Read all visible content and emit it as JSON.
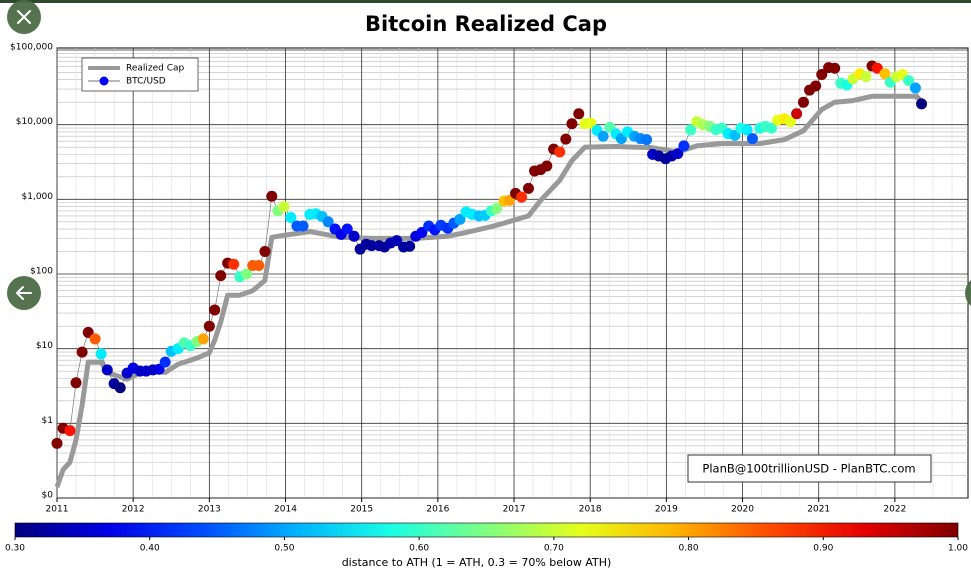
{
  "chart_data": {
    "type": "scatter-line",
    "title": "Bitcoin Realized Cap",
    "log_y": true,
    "grid": true,
    "legend": "upper-left",
    "annotation": "PlanB@100trillionUSD  -  PlanBTC.com",
    "xlim": [
      2011,
      2022.96
    ],
    "xticks": [
      2011,
      2012,
      2013,
      2014,
      2015,
      2016,
      2017,
      2018,
      2019,
      2020,
      2021,
      2022
    ],
    "ylim": [
      0.1,
      100000
    ],
    "yticks": [
      {
        "value": 0.1,
        "label": "$0"
      },
      {
        "value": 1,
        "label": "$1"
      },
      {
        "value": 10,
        "label": "$10"
      },
      {
        "value": 100,
        "label": "$100"
      },
      {
        "value": 1000,
        "label": "$1,000"
      },
      {
        "value": 10000,
        "label": "$10,000"
      },
      {
        "value": 100000,
        "label": "$100,000"
      }
    ],
    "colorbar": {
      "label": "distance to ATH (1 = ATH, 0.3 = 70% below ATH)",
      "colormap": "jet",
      "lim": [
        0.3,
        1.0
      ],
      "ticks": [
        {
          "value": 0.3,
          "label": "0.30"
        },
        {
          "value": 0.4,
          "label": "0.40"
        },
        {
          "value": 0.5,
          "label": "0.50"
        },
        {
          "value": 0.6,
          "label": "0.60"
        },
        {
          "value": 0.7,
          "label": "0.70"
        },
        {
          "value": 0.8,
          "label": "0.80"
        },
        {
          "value": 0.9,
          "label": "0.90"
        },
        {
          "value": 1.0,
          "label": "1.00"
        }
      ]
    },
    "series": [
      {
        "name": "Realized Cap",
        "color": "#999999",
        "x": [
          2011.0,
          2011.08,
          2011.17,
          2011.25,
          2011.33,
          2011.41,
          2011.58,
          2011.66,
          2011.92,
          2012.17,
          2012.42,
          2012.59,
          2012.84,
          2013.0,
          2013.07,
          2013.15,
          2013.24,
          2013.4,
          2013.57,
          2013.73,
          2013.82,
          2013.98,
          2014.32,
          2014.73,
          2015.13,
          2015.71,
          2016.12,
          2016.37,
          2016.7,
          2016.87,
          2017.19,
          2017.35,
          2017.6,
          2017.76,
          2017.93,
          2018.34,
          2018.82,
          2019.15,
          2019.4,
          2019.73,
          2020.23,
          2020.55,
          2020.8,
          2021.04,
          2021.21,
          2021.45,
          2021.7,
          2021.94,
          2022.27,
          2022.35
        ],
        "values": [
          0.14,
          0.24,
          0.3,
          0.6,
          1.75,
          6.6,
          6.6,
          4.8,
          3.9,
          5.2,
          4.8,
          6.2,
          7.5,
          8.8,
          13,
          23,
          52,
          52,
          60,
          82,
          310,
          330,
          370,
          310,
          300,
          300,
          320,
          360,
          430,
          480,
          600,
          970,
          1800,
          3300,
          5000,
          5100,
          4900,
          4300,
          5200,
          5600,
          5600,
          6300,
          8300,
          16000,
          20000,
          21000,
          24000,
          24000,
          24000,
          21000
        ]
      },
      {
        "name": "BTC/USD",
        "color": "#0000ff",
        "x": [
          2011.0,
          2011.08,
          2011.17,
          2011.25,
          2011.33,
          2011.41,
          2011.5,
          2011.58,
          2011.66,
          2011.75,
          2011.83,
          2011.92,
          2012.0,
          2012.09,
          2012.17,
          2012.26,
          2012.34,
          2012.42,
          2012.5,
          2012.59,
          2012.67,
          2012.75,
          2012.84,
          2012.92,
          2013.0,
          2013.07,
          2013.15,
          2013.24,
          2013.32,
          2013.4,
          2013.49,
          2013.57,
          2013.65,
          2013.73,
          2013.82,
          2013.9,
          2013.98,
          2014.07,
          2014.15,
          2014.23,
          2014.32,
          2014.4,
          2014.48,
          2014.56,
          2014.65,
          2014.73,
          2014.81,
          2014.9,
          2014.98,
          2015.06,
          2015.13,
          2015.23,
          2015.3,
          2015.38,
          2015.46,
          2015.55,
          2015.63,
          2015.71,
          2015.79,
          2015.88,
          2015.96,
          2016.04,
          2016.13,
          2016.21,
          2016.29,
          2016.37,
          2016.45,
          2016.54,
          2016.62,
          2016.7,
          2016.77,
          2016.87,
          2016.94,
          2017.02,
          2017.1,
          2017.19,
          2017.27,
          2017.35,
          2017.43,
          2017.52,
          2017.6,
          2017.68,
          2017.76,
          2017.85,
          2017.93,
          2018.01,
          2018.09,
          2018.17,
          2018.26,
          2018.34,
          2018.41,
          2018.49,
          2018.58,
          2018.66,
          2018.74,
          2018.82,
          2018.9,
          2018.99,
          2019.07,
          2019.15,
          2019.23,
          2019.32,
          2019.4,
          2019.48,
          2019.57,
          2019.65,
          2019.73,
          2019.81,
          2019.9,
          2019.98,
          2020.06,
          2020.13,
          2020.23,
          2020.3,
          2020.38,
          2020.46,
          2020.55,
          2020.63,
          2020.71,
          2020.8,
          2020.88,
          2020.96,
          2021.04,
          2021.13,
          2021.21,
          2021.29,
          2021.37,
          2021.45,
          2021.54,
          2021.62,
          2021.7,
          2021.77,
          2021.87,
          2021.94,
          2022.02,
          2022.1,
          2022.18,
          2022.27,
          2022.35
        ],
        "values": [
          0.54,
          0.86,
          0.8,
          3.5,
          9,
          16.5,
          13.5,
          8.5,
          5.2,
          3.4,
          3,
          4.7,
          5.5,
          5,
          5,
          5.2,
          5.3,
          6.6,
          9.2,
          10,
          12,
          11,
          12.5,
          13.5,
          20,
          33,
          95,
          140,
          135,
          92,
          100,
          130,
          130,
          200,
          1100,
          700,
          800,
          570,
          440,
          440,
          630,
          640,
          590,
          500,
          400,
          340,
          400,
          320,
          215,
          250,
          240,
          240,
          230,
          260,
          280,
          230,
          235,
          320,
          360,
          440,
          390,
          450,
          410,
          480,
          540,
          680,
          630,
          600,
          610,
          700,
          750,
          950,
          970,
          1200,
          1070,
          1400,
          2400,
          2500,
          2800,
          4700,
          4300,
          6400,
          10300,
          14000,
          10300,
          10500,
          8400,
          7000,
          9200,
          7500,
          6500,
          8000,
          7000,
          6500,
          6300,
          4000,
          3800,
          3500,
          3800,
          4100,
          5200,
          8500,
          11000,
          10000,
          9500,
          8600,
          9000,
          7600,
          7200,
          9000,
          8500,
          6500,
          9000,
          9500,
          9000,
          11500,
          12000,
          11000,
          14000,
          20000,
          29000,
          33000,
          47000,
          58000,
          57000,
          36000,
          34000,
          41000,
          48000,
          44000,
          61000,
          57000,
          48000,
          37000,
          44000,
          47000,
          39000,
          31000,
          19000
        ],
        "distance": [
          1,
          1,
          0.9,
          1,
          1,
          1,
          0.85,
          0.55,
          0.35,
          0.32,
          0.3,
          0.35,
          0.37,
          0.35,
          0.35,
          0.35,
          0.37,
          0.42,
          0.52,
          0.55,
          0.62,
          0.6,
          0.65,
          0.8,
          1,
          1,
          1,
          1,
          0.88,
          0.6,
          0.65,
          0.85,
          0.85,
          1,
          1,
          0.65,
          0.7,
          0.55,
          0.45,
          0.45,
          0.55,
          0.55,
          0.52,
          0.48,
          0.4,
          0.37,
          0.4,
          0.35,
          0.32,
          0.32,
          0.32,
          0.32,
          0.32,
          0.33,
          0.34,
          0.32,
          0.32,
          0.36,
          0.38,
          0.42,
          0.4,
          0.43,
          0.42,
          0.45,
          0.5,
          0.55,
          0.55,
          0.52,
          0.53,
          0.6,
          0.65,
          0.78,
          0.8,
          1,
          0.88,
          1,
          1,
          1,
          1,
          1,
          0.88,
          1,
          1,
          1,
          0.72,
          0.72,
          0.55,
          0.5,
          0.62,
          0.55,
          0.5,
          0.55,
          0.5,
          0.48,
          0.47,
          0.35,
          0.33,
          0.32,
          0.33,
          0.35,
          0.42,
          0.6,
          0.7,
          0.68,
          0.65,
          0.6,
          0.6,
          0.55,
          0.52,
          0.58,
          0.55,
          0.45,
          0.58,
          0.6,
          0.6,
          0.72,
          0.75,
          0.72,
          0.95,
          1,
          1,
          1,
          1,
          1,
          1,
          0.6,
          0.58,
          0.7,
          0.75,
          0.7,
          1,
          0.9,
          0.78,
          0.6,
          0.7,
          0.72,
          0.6,
          0.5,
          0.3
        ]
      }
    ]
  }
}
